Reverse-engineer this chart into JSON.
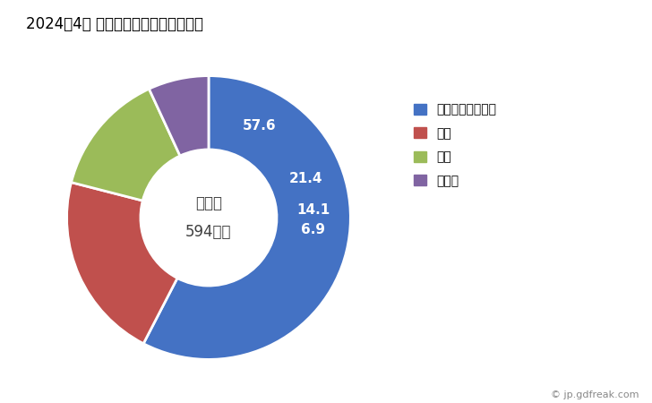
{
  "title": "2024年4月 輸出相手国のシェア（％）",
  "labels": [
    "アラブ首長国連邦",
    "韓国",
    "中国",
    "ドイツ"
  ],
  "values": [
    57.6,
    21.4,
    14.1,
    6.9
  ],
  "colors": [
    "#4472C4",
    "#C0504D",
    "#9BBB59",
    "#8064A2"
  ],
  "center_text_line1": "総　額",
  "center_text_line2": "594万円",
  "watermark": "© jp.gdfreak.com",
  "background_color": "#FFFFFF",
  "wedge_labels": [
    "57.6",
    "21.4",
    "14.1",
    "6.9"
  ],
  "label_colors": [
    "white",
    "white",
    "white",
    "white"
  ]
}
